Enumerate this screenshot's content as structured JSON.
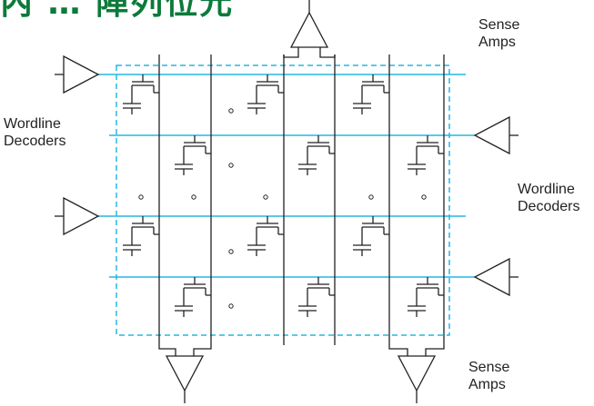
{
  "header": {
    "title_fragment": "內 … 陣列位元",
    "title_color": "#0b7a3a"
  },
  "labels": {
    "sense_amps_top": "Sense\nAmps",
    "sense_amps_bottom": "Sense\nAmps",
    "wordline_decoders_left": "Wordline\nDecoders",
    "wordline_decoders_right": "Wordline\nDecoders"
  },
  "colors": {
    "wordline": "#26b5e3",
    "boundary": "#26b5e3",
    "wire": "#222222"
  },
  "icons": {
    "decoder": "buffer-triangle-icon",
    "sense_amp": "buffer-triangle-icon",
    "cell": "dram-cell-transistor-capacitor-icon"
  }
}
